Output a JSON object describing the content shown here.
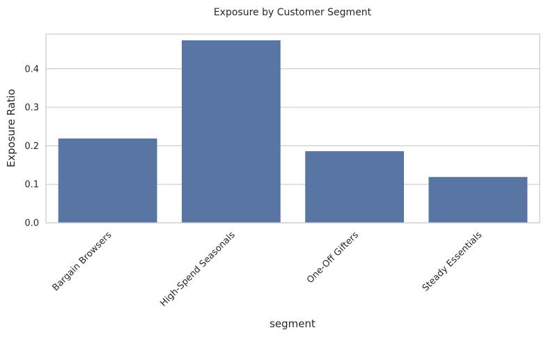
{
  "chart_data": {
    "type": "bar",
    "title": "Exposure by Customer Segment",
    "xlabel": "segment",
    "ylabel": "Exposure Ratio",
    "categories": [
      "Bargain Browsers",
      "High-Spend Seasonals",
      "One-Off Gifters",
      "Steady Essentials"
    ],
    "values": [
      0.219,
      0.474,
      0.186,
      0.119
    ],
    "ylim": [
      0,
      0.49
    ],
    "yticks": [
      "0.0",
      "0.1",
      "0.2",
      "0.3",
      "0.4"
    ],
    "grid": "y",
    "bar_color": "#5875a4",
    "grid_color": "#cccccc"
  }
}
